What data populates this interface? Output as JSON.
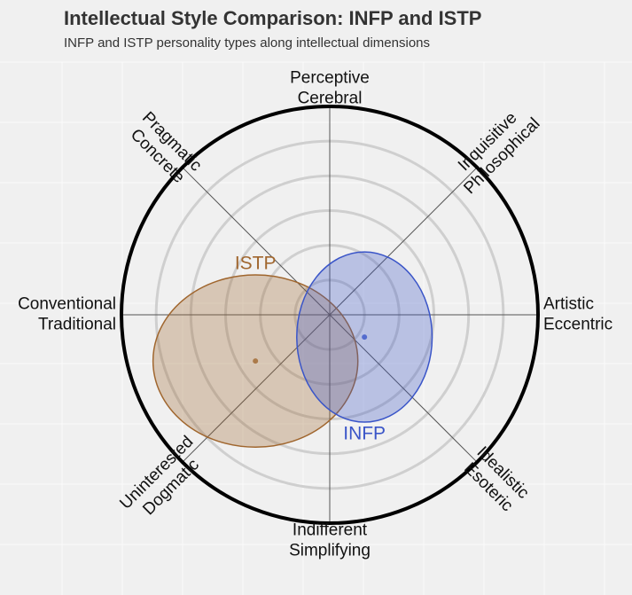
{
  "chart_data": {
    "type": "ellipse",
    "title": "Intellectual Style Comparison: INFP and ISTP",
    "subtitle": "INFP and ISTP personality types along intellectual dimensions",
    "axis_labels": [
      [
        "Artistic",
        "Eccentric"
      ],
      [
        "Inquisitive",
        "Philosophical"
      ],
      [
        "Perceptive",
        "Cerebral"
      ],
      [
        "Pragmatic",
        "Concrete"
      ],
      [
        "Conventional",
        "Traditional"
      ],
      [
        "Uninterested",
        "Dogmatic"
      ],
      [
        "Indifferent",
        "Simplifying"
      ],
      [
        "Idealistic",
        "Esoteric"
      ]
    ],
    "xlim": [
      -6,
      6
    ],
    "ylim": [
      -6,
      6
    ],
    "rticks": [
      1,
      2,
      3,
      4,
      5
    ],
    "grid": true,
    "series": [
      {
        "name": "ISTP",
        "color": "#a0662e",
        "x": -2.14,
        "y": -1.33,
        "rx": 2.95,
        "ry": 2.48
      },
      {
        "name": "INFP",
        "color": "#3a55c8",
        "x": 1.0,
        "y": -0.64,
        "rx": 1.95,
        "ry": 2.45
      }
    ]
  }
}
